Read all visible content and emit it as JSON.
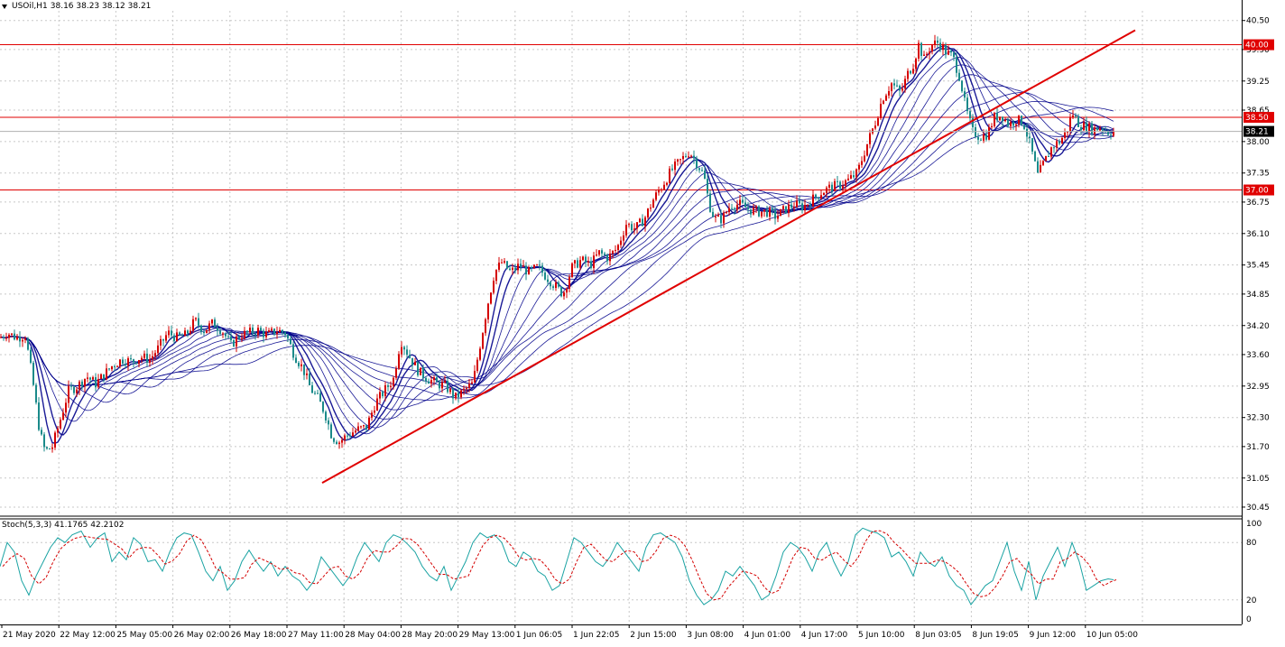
{
  "header": {
    "symbol": "USOil,H1",
    "ohlc": "38.16 38.23 38.12 38.21"
  },
  "indicator": {
    "label": "Stoch(5,3,3) 41.1765 42.2102"
  },
  "colors": {
    "bull": "#d40000",
    "bear": "#1a8a8a",
    "ribbon": "#00008b",
    "line": "#e00000",
    "kline": "#1aa3a3",
    "dline": "#d40000"
  },
  "chart_data": {
    "type": "line",
    "title": "",
    "price_axis": {
      "range": [
        30.3,
        40.7
      ],
      "ticks": [
        "40.50",
        "39.90",
        "39.25",
        "38.65",
        "38.00",
        "37.35",
        "36.75",
        "36.10",
        "35.45",
        "34.85",
        "34.20",
        "33.60",
        "32.95",
        "32.30",
        "31.70",
        "31.05",
        "30.45"
      ]
    },
    "time_axis": [
      "21 May 2020",
      "22 May 12:00",
      "25 May 05:00",
      "26 May 02:00",
      "26 May 18:00",
      "27 May 11:00",
      "28 May 04:00",
      "28 May 20:00",
      "29 May 13:00",
      "1 Jun 06:05",
      "1 Jun 22:05",
      "2 Jun 15:00",
      "3 Jun 08:00",
      "4 Jun 01:00",
      "4 Jun 17:00",
      "5 Jun 10:00",
      "8 Jun 03:05",
      "8 Jun 19:05",
      "9 Jun 12:00",
      "10 Jun 05:00"
    ],
    "horizontal_lines": [
      {
        "price": 40.0,
        "label": "40.00"
      },
      {
        "price": 38.5,
        "label": "38.50"
      },
      {
        "price": 37.0,
        "label": "37.00"
      }
    ],
    "current_price": {
      "price": 38.21,
      "label": "38.21"
    },
    "trendline": {
      "from": {
        "time": "28 May 00:00",
        "price": 30.95
      },
      "to": {
        "time": "10 Jun 05:00",
        "price": 40.3
      }
    },
    "price_path": [
      [
        0,
        33.95
      ],
      [
        8,
        34.05
      ],
      [
        18,
        33.95
      ],
      [
        28,
        34.0
      ],
      [
        36,
        33.1
      ],
      [
        44,
        32.0
      ],
      [
        50,
        31.6
      ],
      [
        58,
        31.7
      ],
      [
        66,
        32.2
      ],
      [
        76,
        32.85
      ],
      [
        86,
        32.95
      ],
      [
        96,
        33.15
      ],
      [
        106,
        33.0
      ],
      [
        116,
        33.2
      ],
      [
        126,
        33.4
      ],
      [
        136,
        33.5
      ],
      [
        146,
        33.45
      ],
      [
        156,
        33.55
      ],
      [
        166,
        33.5
      ],
      [
        176,
        33.75
      ],
      [
        186,
        34.05
      ],
      [
        196,
        33.95
      ],
      [
        206,
        34.0
      ],
      [
        216,
        34.3
      ],
      [
        226,
        34.1
      ],
      [
        236,
        34.25
      ],
      [
        246,
        34.1
      ],
      [
        256,
        33.8
      ],
      [
        266,
        34.0
      ],
      [
        276,
        34.05
      ],
      [
        286,
        34.1
      ],
      [
        296,
        34.0
      ],
      [
        306,
        34.1
      ],
      [
        316,
        34.05
      ],
      [
        326,
        33.6
      ],
      [
        336,
        33.3
      ],
      [
        344,
        32.9
      ],
      [
        352,
        32.7
      ],
      [
        360,
        32.4
      ],
      [
        368,
        31.9
      ],
      [
        376,
        31.8
      ],
      [
        386,
        31.95
      ],
      [
        396,
        32.05
      ],
      [
        406,
        32.1
      ],
      [
        416,
        32.6
      ],
      [
        426,
        32.85
      ],
      [
        436,
        33.1
      ],
      [
        444,
        33.9
      ],
      [
        454,
        33.55
      ],
      [
        464,
        33.25
      ],
      [
        474,
        33.1
      ],
      [
        484,
        33.0
      ],
      [
        494,
        32.95
      ],
      [
        504,
        32.7
      ],
      [
        514,
        32.85
      ],
      [
        524,
        33.0
      ],
      [
        532,
        33.8
      ],
      [
        540,
        34.6
      ],
      [
        548,
        35.3
      ],
      [
        556,
        35.5
      ],
      [
        566,
        35.3
      ],
      [
        576,
        35.45
      ],
      [
        586,
        35.3
      ],
      [
        596,
        35.4
      ],
      [
        606,
        35.2
      ],
      [
        616,
        35.0
      ],
      [
        624,
        34.85
      ],
      [
        634,
        35.4
      ],
      [
        644,
        35.55
      ],
      [
        654,
        35.45
      ],
      [
        664,
        35.7
      ],
      [
        674,
        35.6
      ],
      [
        684,
        35.8
      ],
      [
        694,
        36.3
      ],
      [
        704,
        36.2
      ],
      [
        714,
        36.4
      ],
      [
        724,
        36.8
      ],
      [
        734,
        37.1
      ],
      [
        744,
        37.4
      ],
      [
        754,
        37.6
      ],
      [
        764,
        37.8
      ],
      [
        774,
        37.5
      ],
      [
        780,
        37.3
      ],
      [
        786,
        36.7
      ],
      [
        792,
        36.4
      ],
      [
        800,
        36.4
      ],
      [
        810,
        36.7
      ],
      [
        820,
        36.7
      ],
      [
        830,
        36.6
      ],
      [
        840,
        36.55
      ],
      [
        850,
        36.55
      ],
      [
        860,
        36.45
      ],
      [
        870,
        36.6
      ],
      [
        880,
        36.7
      ],
      [
        890,
        36.65
      ],
      [
        900,
        36.8
      ],
      [
        910,
        36.95
      ],
      [
        920,
        37.05
      ],
      [
        930,
        37.1
      ],
      [
        940,
        37.2
      ],
      [
        950,
        37.35
      ],
      [
        960,
        37.9
      ],
      [
        970,
        38.4
      ],
      [
        978,
        38.9
      ],
      [
        988,
        39.2
      ],
      [
        998,
        39.0
      ],
      [
        1006,
        39.4
      ],
      [
        1012,
        39.6
      ],
      [
        1018,
        40.0
      ],
      [
        1024,
        39.7
      ],
      [
        1032,
        40.0
      ],
      [
        1040,
        40.05
      ],
      [
        1048,
        39.85
      ],
      [
        1056,
        39.75
      ],
      [
        1064,
        39.3
      ],
      [
        1070,
        38.7
      ],
      [
        1078,
        38.2
      ],
      [
        1086,
        38.1
      ],
      [
        1094,
        38.15
      ],
      [
        1102,
        38.5
      ],
      [
        1110,
        38.55
      ],
      [
        1118,
        38.35
      ],
      [
        1126,
        38.45
      ],
      [
        1134,
        38.4
      ],
      [
        1142,
        37.9
      ],
      [
        1150,
        37.3
      ],
      [
        1158,
        37.6
      ],
      [
        1166,
        37.9
      ],
      [
        1174,
        38.0
      ],
      [
        1182,
        38.2
      ],
      [
        1188,
        38.6
      ],
      [
        1196,
        38.35
      ],
      [
        1204,
        38.3
      ],
      [
        1212,
        38.25
      ],
      [
        1220,
        38.3
      ],
      [
        1228,
        38.2
      ],
      [
        1234,
        38.21
      ]
    ],
    "stochastic": {
      "range": [
        0,
        100
      ],
      "ticks": [
        "100",
        "80",
        "20",
        "0"
      ],
      "k": [
        [
          0,
          55
        ],
        [
          8,
          80
        ],
        [
          16,
          70
        ],
        [
          24,
          40
        ],
        [
          32,
          25
        ],
        [
          40,
          45
        ],
        [
          48,
          60
        ],
        [
          56,
          75
        ],
        [
          64,
          85
        ],
        [
          72,
          80
        ],
        [
          80,
          88
        ],
        [
          90,
          92
        ],
        [
          100,
          75
        ],
        [
          108,
          85
        ],
        [
          116,
          90
        ],
        [
          124,
          60
        ],
        [
          132,
          70
        ],
        [
          140,
          62
        ],
        [
          148,
          85
        ],
        [
          156,
          78
        ],
        [
          164,
          60
        ],
        [
          172,
          62
        ],
        [
          180,
          50
        ],
        [
          188,
          70
        ],
        [
          196,
          85
        ],
        [
          204,
          90
        ],
        [
          212,
          88
        ],
        [
          220,
          70
        ],
        [
          228,
          50
        ],
        [
          236,
          40
        ],
        [
          244,
          55
        ],
        [
          252,
          30
        ],
        [
          260,
          40
        ],
        [
          268,
          60
        ],
        [
          276,
          72
        ],
        [
          284,
          60
        ],
        [
          292,
          50
        ],
        [
          300,
          60
        ],
        [
          308,
          45
        ],
        [
          316,
          55
        ],
        [
          324,
          45
        ],
        [
          332,
          40
        ],
        [
          340,
          30
        ],
        [
          348,
          40
        ],
        [
          356,
          65
        ],
        [
          364,
          55
        ],
        [
          372,
          45
        ],
        [
          380,
          35
        ],
        [
          388,
          45
        ],
        [
          396,
          65
        ],
        [
          404,
          80
        ],
        [
          412,
          70
        ],
        [
          420,
          60
        ],
        [
          428,
          80
        ],
        [
          436,
          88
        ],
        [
          444,
          85
        ],
        [
          452,
          78
        ],
        [
          460,
          70
        ],
        [
          468,
          55
        ],
        [
          476,
          45
        ],
        [
          484,
          40
        ],
        [
          492,
          55
        ],
        [
          500,
          30
        ],
        [
          508,
          45
        ],
        [
          516,
          60
        ],
        [
          524,
          80
        ],
        [
          532,
          90
        ],
        [
          540,
          85
        ],
        [
          548,
          88
        ],
        [
          556,
          80
        ],
        [
          564,
          60
        ],
        [
          572,
          55
        ],
        [
          580,
          70
        ],
        [
          588,
          65
        ],
        [
          596,
          50
        ],
        [
          604,
          45
        ],
        [
          612,
          30
        ],
        [
          620,
          35
        ],
        [
          628,
          60
        ],
        [
          636,
          85
        ],
        [
          644,
          80
        ],
        [
          652,
          70
        ],
        [
          660,
          60
        ],
        [
          668,
          55
        ],
        [
          676,
          65
        ],
        [
          684,
          80
        ],
        [
          692,
          70
        ],
        [
          700,
          60
        ],
        [
          708,
          50
        ],
        [
          716,
          75
        ],
        [
          724,
          88
        ],
        [
          732,
          90
        ],
        [
          740,
          85
        ],
        [
          748,
          80
        ],
        [
          756,
          65
        ],
        [
          764,
          40
        ],
        [
          772,
          25
        ],
        [
          780,
          15
        ],
        [
          788,
          20
        ],
        [
          796,
          30
        ],
        [
          804,
          50
        ],
        [
          812,
          45
        ],
        [
          820,
          55
        ],
        [
          828,
          45
        ],
        [
          836,
          35
        ],
        [
          844,
          20
        ],
        [
          852,
          25
        ],
        [
          860,
          45
        ],
        [
          868,
          70
        ],
        [
          876,
          80
        ],
        [
          884,
          75
        ],
        [
          892,
          65
        ],
        [
          900,
          50
        ],
        [
          908,
          70
        ],
        [
          916,
          80
        ],
        [
          924,
          60
        ],
        [
          932,
          45
        ],
        [
          940,
          60
        ],
        [
          948,
          88
        ],
        [
          956,
          95
        ],
        [
          964,
          92
        ],
        [
          972,
          90
        ],
        [
          980,
          85
        ],
        [
          988,
          65
        ],
        [
          996,
          70
        ],
        [
          1004,
          60
        ],
        [
          1012,
          45
        ],
        [
          1020,
          70
        ],
        [
          1028,
          60
        ],
        [
          1036,
          55
        ],
        [
          1044,
          65
        ],
        [
          1052,
          45
        ],
        [
          1060,
          35
        ],
        [
          1068,
          30
        ],
        [
          1076,
          15
        ],
        [
          1084,
          25
        ],
        [
          1092,
          35
        ],
        [
          1100,
          40
        ],
        [
          1108,
          60
        ],
        [
          1116,
          80
        ],
        [
          1124,
          50
        ],
        [
          1132,
          30
        ],
        [
          1140,
          60
        ],
        [
          1148,
          20
        ],
        [
          1156,
          45
        ],
        [
          1164,
          60
        ],
        [
          1172,
          75
        ],
        [
          1180,
          55
        ],
        [
          1188,
          80
        ],
        [
          1196,
          60
        ],
        [
          1204,
          30
        ],
        [
          1212,
          35
        ],
        [
          1220,
          40
        ],
        [
          1228,
          42
        ],
        [
          1234,
          41
        ]
      ]
    }
  }
}
